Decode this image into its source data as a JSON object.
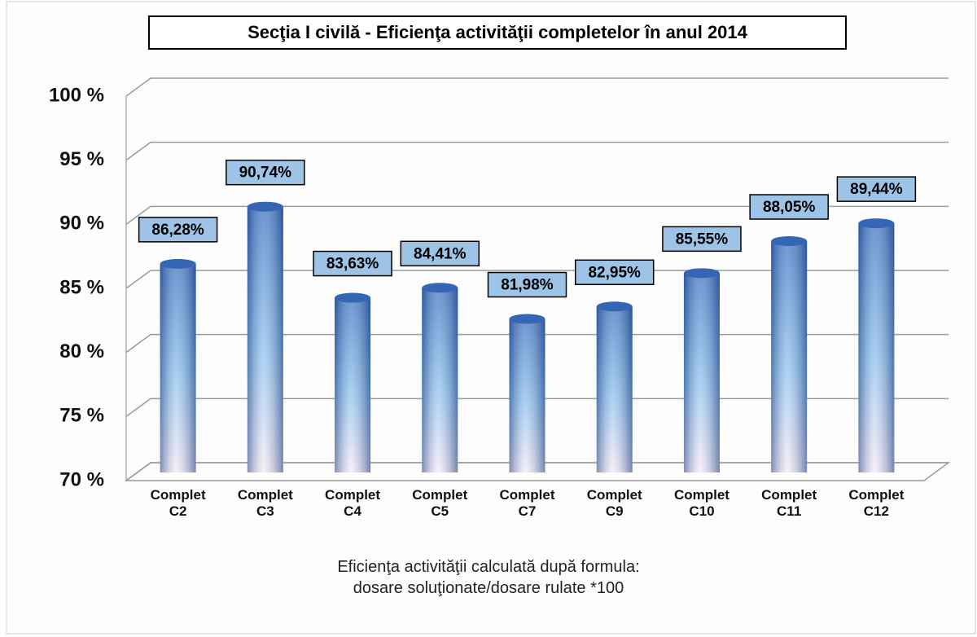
{
  "chart_data": {
    "type": "bar",
    "title": "Secţia I civilă - Eficienţa activităţii completelor în anul 2014",
    "categories": [
      "Complet C2",
      "Complet C3",
      "Complet C4",
      "Complet C5",
      "Complet C7",
      "Complet C9",
      "Complet C10",
      "Complet C11",
      "Complet C12"
    ],
    "values": [
      86.28,
      90.74,
      83.63,
      84.41,
      81.98,
      82.95,
      85.55,
      88.05,
      89.44
    ],
    "value_labels": [
      "86,28%",
      "90,74%",
      "83,63%",
      "84,41%",
      "81,98%",
      "82,95%",
      "85,55%",
      "88,05%",
      "89,44%"
    ],
    "color": "#3f74c2",
    "ylim": [
      70,
      100
    ],
    "yticks": [
      {
        "value": 70,
        "label": "70 %"
      },
      {
        "value": 75,
        "label": "75 %"
      },
      {
        "value": 80,
        "label": "80 %"
      },
      {
        "value": 85,
        "label": "85 %"
      },
      {
        "value": 90,
        "label": "90 %"
      },
      {
        "value": 95,
        "label": "95 %"
      },
      {
        "value": 100,
        "label": "100 %"
      }
    ],
    "grid": true,
    "annotations": [
      "Eficienţa activităţii calculată după formula:",
      "dosare soluţionate/dosare rulate *100"
    ]
  }
}
